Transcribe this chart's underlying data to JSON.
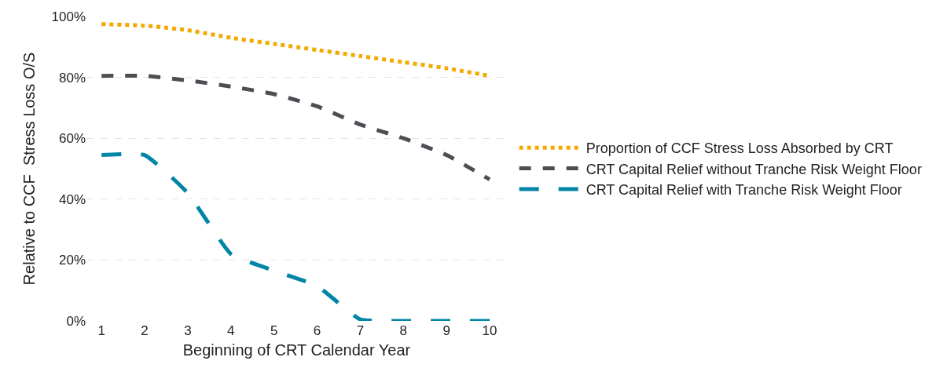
{
  "chart_data": {
    "type": "line",
    "xlabel": "Beginning of CRT Calendar Year",
    "ylabel": "Relative to CCF  Stress Loss O/S",
    "categories": [
      "1",
      "2",
      "3",
      "4",
      "5",
      "6",
      "7",
      "8",
      "9",
      "10"
    ],
    "series": [
      {
        "name": "Proportion of CCF Stress Loss Absorbed by CRT",
        "color": "#f2a900",
        "line_style": "dotted",
        "values": [
          97.5,
          97,
          95.5,
          93,
          91,
          89,
          87,
          85,
          83,
          80.5
        ]
      },
      {
        "name": "CRT Capital Relief without Tranche Risk Weight Floor",
        "color": "#4d4e53",
        "line_style": "dashed",
        "values": [
          80.5,
          80.5,
          79,
          77,
          74.5,
          70.5,
          64.5,
          60,
          54.5,
          46.5
        ]
      },
      {
        "name": "CRT Capital Relief with Tranche Risk Weight Floor",
        "color": "#0085a6",
        "line_style": "longdash",
        "values": [
          54.5,
          54.5,
          42,
          22,
          16.5,
          11.5,
          0.5,
          0,
          0,
          0
        ]
      }
    ],
    "ylim": [
      0,
      100
    ],
    "yticks": [
      {
        "value": 0,
        "label": "0%"
      },
      {
        "value": 20,
        "label": "20%"
      },
      {
        "value": 40,
        "label": "40%"
      },
      {
        "value": 60,
        "label": "60%"
      },
      {
        "value": 80,
        "label": "80%"
      },
      {
        "value": 100,
        "label": "100%"
      }
    ],
    "grid": "y",
    "legend": "right",
    "marker": "none"
  }
}
